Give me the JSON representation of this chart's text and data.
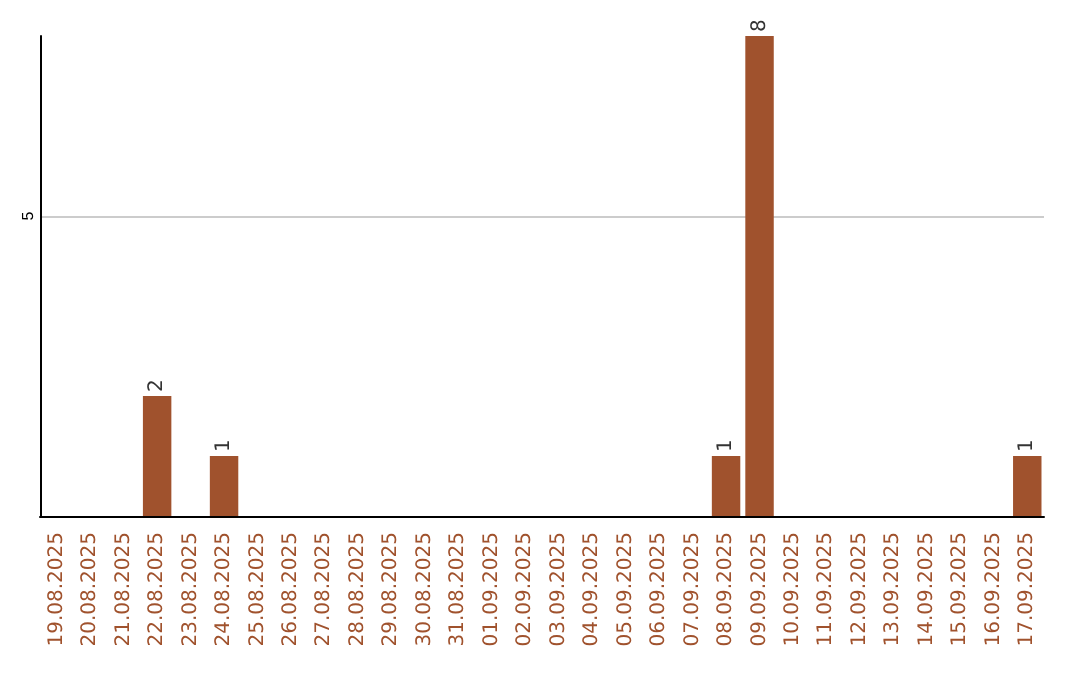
{
  "chart_data": {
    "type": "bar",
    "categories": [
      "19.08.2025",
      "20.08.2025",
      "21.08.2025",
      "22.08.2025",
      "23.08.2025",
      "24.08.2025",
      "25.08.2025",
      "26.08.2025",
      "27.08.2025",
      "28.08.2025",
      "29.08.2025",
      "30.08.2025",
      "31.08.2025",
      "01.09.2025",
      "02.09.2025",
      "03.09.2025",
      "04.09.2025",
      "05.09.2025",
      "06.09.2025",
      "07.09.2025",
      "08.09.2025",
      "09.09.2025",
      "10.09.2025",
      "11.09.2025",
      "12.09.2025",
      "13.09.2025",
      "14.09.2025",
      "15.09.2025",
      "16.09.2025",
      "17.09.2025"
    ],
    "values": [
      0,
      0,
      0,
      2,
      0,
      1,
      0,
      0,
      0,
      0,
      0,
      0,
      0,
      0,
      0,
      0,
      0,
      0,
      0,
      0,
      1,
      8,
      0,
      0,
      0,
      0,
      0,
      0,
      0,
      1
    ],
    "value_labels": [
      null,
      null,
      null,
      "2",
      null,
      "1",
      null,
      null,
      null,
      null,
      null,
      null,
      null,
      null,
      null,
      null,
      null,
      null,
      null,
      null,
      "1",
      "8",
      null,
      null,
      null,
      null,
      null,
      null,
      null,
      "1"
    ],
    "color": "#a0522d",
    "ylim": [
      0,
      8
    ],
    "yticks": [
      5
    ],
    "grid": "y"
  }
}
